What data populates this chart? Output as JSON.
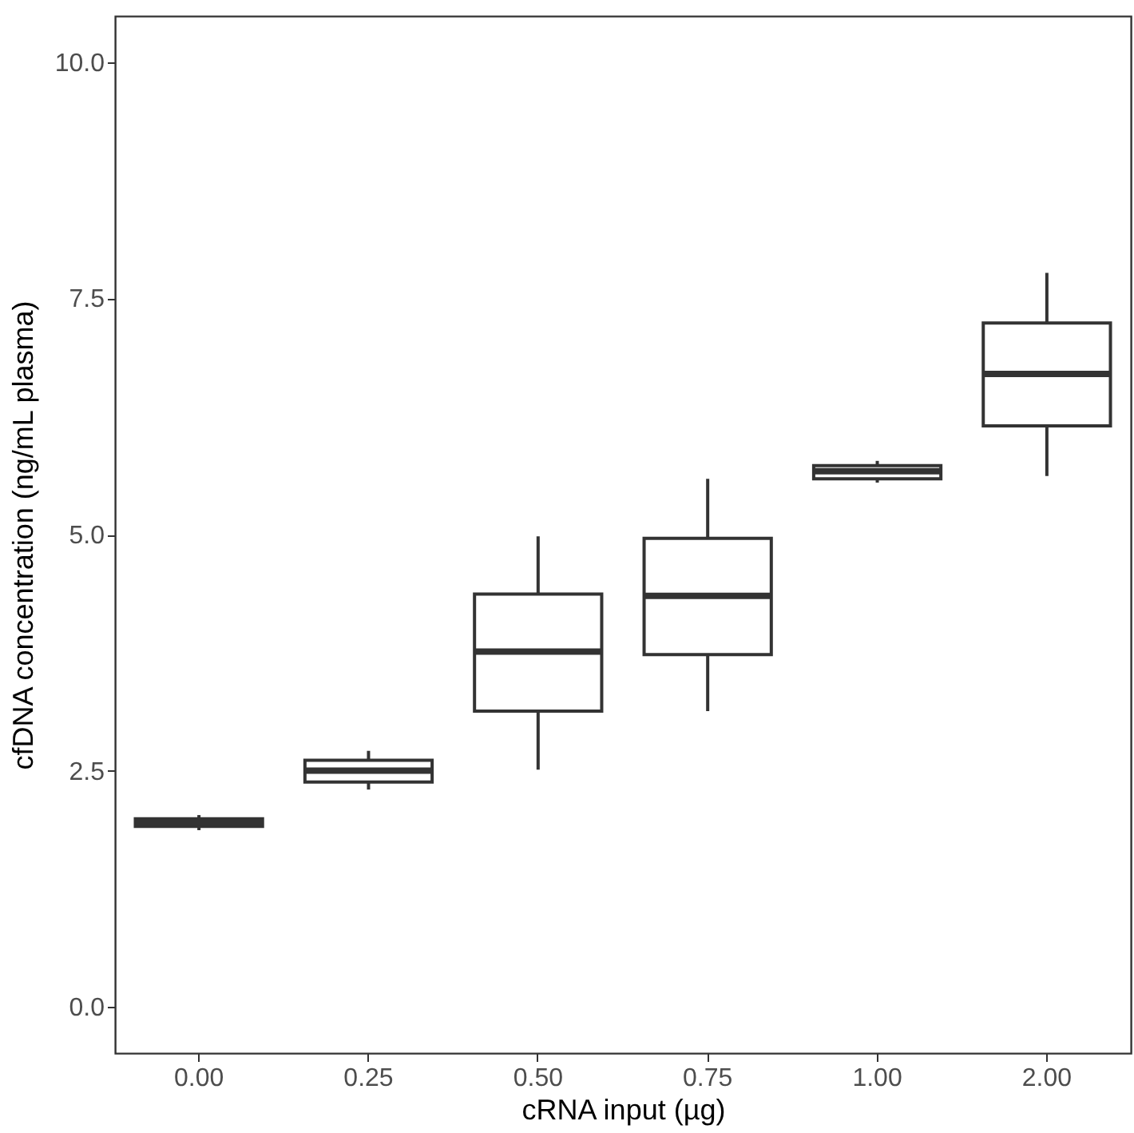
{
  "chart_data": {
    "type": "box",
    "xlabel": "cRNA input (µg)",
    "ylabel": "cfDNA concentration (ng/mL plasma)",
    "categories": [
      "0.00",
      "0.25",
      "0.50",
      "0.75",
      "1.00",
      "2.00"
    ],
    "boxes": [
      {
        "low": 1.87,
        "q1": 1.91,
        "median": 1.95,
        "q3": 1.99,
        "high": 2.03
      },
      {
        "low": 2.3,
        "q1": 2.38,
        "median": 2.5,
        "q3": 2.61,
        "high": 2.71
      },
      {
        "low": 2.51,
        "q1": 3.13,
        "median": 3.76,
        "q3": 4.37,
        "high": 4.98
      },
      {
        "low": 3.13,
        "q1": 3.73,
        "median": 4.35,
        "q3": 4.96,
        "high": 5.59
      },
      {
        "low": 5.55,
        "q1": 5.59,
        "median": 5.67,
        "q3": 5.73,
        "high": 5.78
      },
      {
        "low": 5.62,
        "q1": 6.15,
        "median": 6.7,
        "q3": 7.24,
        "high": 7.77
      }
    ],
    "color": "#333333",
    "ylim": [
      -0.49,
      10.49
    ],
    "yticks": [
      {
        "value": 0,
        "label": "0.0"
      },
      2.5,
      {
        "value": 5,
        "label": "5.0"
      },
      7.5,
      {
        "value": 10,
        "label": "10.0"
      }
    ],
    "grid": false
  }
}
